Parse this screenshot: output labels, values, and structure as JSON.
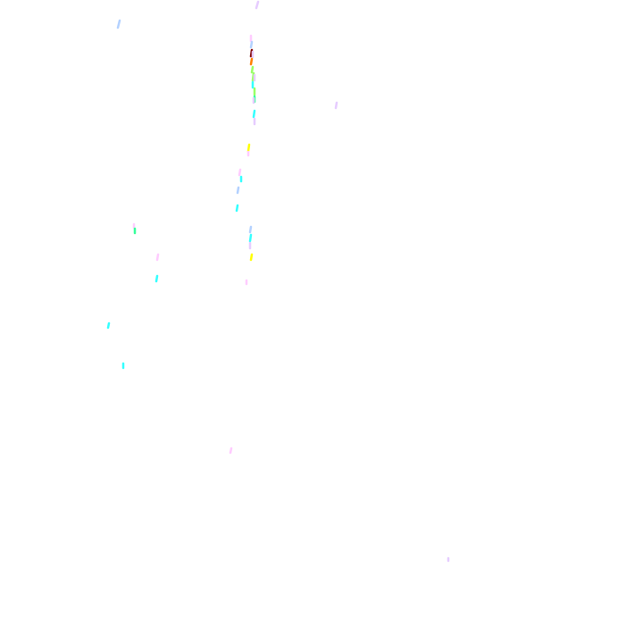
{
  "background": "#ffffff",
  "stroke_colors": {
    "lavender": "#e6ccff",
    "light_blue": "#b3d1ff",
    "dark_red": "#800000",
    "orange": "#ff8000",
    "light_green": "#99ff66",
    "cyan": "#33ffff",
    "yellow": "#ffff00",
    "pink": "#ffccff",
    "mint": "#33ff99"
  }
}
